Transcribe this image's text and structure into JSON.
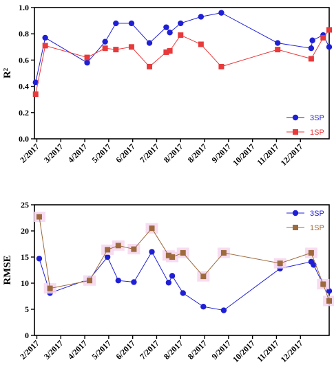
{
  "chart_data": [
    {
      "type": "line",
      "ylabel": "R²",
      "xlabel": "",
      "ylim": [
        0,
        1
      ],
      "yticks": [
        "0.0",
        "0.2",
        "0.4",
        "0.6",
        "0.8",
        "1.0"
      ],
      "x_tick_labels": [
        "2/2017",
        "3/2017",
        "4/2017",
        "5/2017",
        "6/2017",
        "7/2017",
        "8/2017",
        "8/2017",
        "9/2017",
        "10/2017",
        "11/2017",
        "12/2017"
      ],
      "x_tick_pos": [
        0,
        1,
        2,
        3,
        4,
        5,
        6,
        7,
        8,
        9,
        10,
        11
      ],
      "xlim": [
        -0.1,
        12.2
      ],
      "legend_position": "lower-right",
      "grid": false,
      "series": [
        {
          "name": "3SP",
          "color": "#1f1fd6",
          "marker": "circle",
          "x": [
            -0.05,
            0.35,
            2.1,
            2.85,
            3.3,
            3.95,
            4.7,
            5.4,
            5.55,
            6.0,
            6.85,
            7.7,
            10.05,
            11.45,
            11.5,
            11.95,
            12.2
          ],
          "values": [
            0.43,
            0.77,
            0.58,
            0.74,
            0.88,
            0.88,
            0.73,
            0.85,
            0.81,
            0.88,
            0.93,
            0.96,
            0.73,
            0.69,
            0.75,
            0.79,
            0.7
          ]
        },
        {
          "name": "1SP",
          "color": "#e8393b",
          "marker": "square",
          "x": [
            -0.05,
            0.35,
            2.1,
            2.85,
            3.3,
            3.95,
            4.7,
            5.4,
            5.55,
            6.0,
            6.85,
            7.7,
            10.05,
            11.45,
            11.95,
            12.2
          ],
          "values": [
            0.34,
            0.71,
            0.62,
            0.69,
            0.68,
            0.7,
            0.55,
            0.66,
            0.67,
            0.79,
            0.72,
            0.55,
            0.68,
            0.61,
            0.77,
            0.83
          ]
        }
      ]
    },
    {
      "type": "line",
      "ylabel": "RMSE",
      "xlabel": "",
      "ylim": [
        0,
        25
      ],
      "yticks": [
        "0",
        "5",
        "10",
        "15",
        "20",
        "25"
      ],
      "x_tick_labels": [
        "2/2017",
        "3/2017",
        "4/2017",
        "5/2017",
        "6/2017",
        "7/2017",
        "8/2017",
        "8/2017",
        "9/2017",
        "10/2017",
        "11/2017",
        "12/2017"
      ],
      "x_tick_pos": [
        0,
        1,
        2,
        3,
        4,
        5,
        6,
        7,
        8,
        9,
        10,
        11
      ],
      "xlim": [
        -0.1,
        12.2
      ],
      "legend_position": "top-right",
      "grid": false,
      "series": [
        {
          "name": "3SP",
          "color": "#1f1fd6",
          "marker": "circle",
          "x": [
            0.1,
            0.55,
            2.2,
            2.95,
            3.4,
            4.05,
            4.8,
            5.5,
            5.65,
            6.1,
            6.95,
            7.8,
            10.15,
            11.45,
            11.55,
            11.95,
            12.2
          ],
          "values": [
            14.7,
            8.1,
            10.8,
            15.0,
            10.5,
            10.2,
            16.0,
            10.1,
            11.4,
            8.1,
            5.5,
            4.8,
            12.8,
            14.1,
            13.5,
            9.7,
            8.5
          ],
          "error": [
            0,
            0,
            0,
            0,
            0,
            0,
            0,
            0,
            0,
            0,
            0,
            0,
            0,
            0,
            0,
            0,
            0
          ]
        },
        {
          "name": "1SP",
          "color": "#9c6a3c",
          "marker": "square",
          "x": [
            0.1,
            0.55,
            2.2,
            2.95,
            3.4,
            4.05,
            4.8,
            5.5,
            5.65,
            6.1,
            6.95,
            7.8,
            10.15,
            11.45,
            11.95,
            12.2
          ],
          "values": [
            22.7,
            9.0,
            10.5,
            16.4,
            17.2,
            16.5,
            20.5,
            15.3,
            15.0,
            15.8,
            11.3,
            15.8,
            13.8,
            15.8,
            9.8,
            6.6
          ],
          "error": [
            0.6,
            0.6,
            0.6,
            0.6,
            0.6,
            0.6,
            0.6,
            0.6,
            0.6,
            0.6,
            0.6,
            0.6,
            0.6,
            0.6,
            0.6,
            0.6
          ]
        }
      ]
    }
  ]
}
